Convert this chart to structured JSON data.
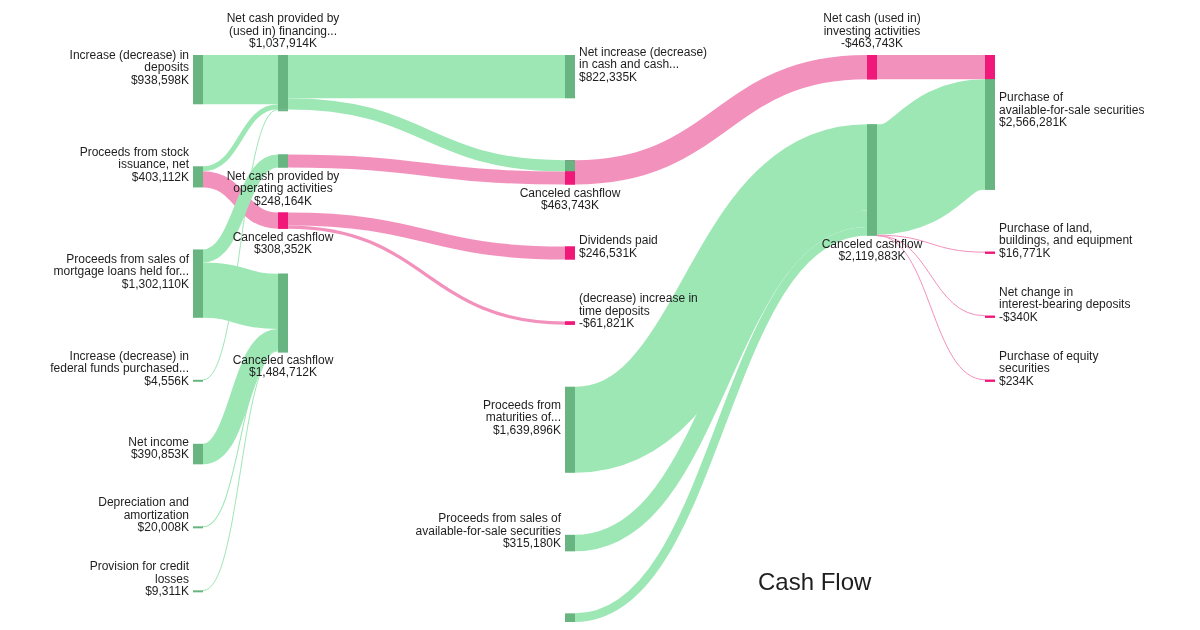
{
  "chart_data": {
    "type": "other",
    "title": "Cash Flow",
    "categories": [
      "Increase (decrease) in deposits",
      "Proceeds from stock issuance, net",
      "Proceeds from sales of mortgage loans held for...",
      "Increase (decrease) in federal funds purchased...",
      "Net income",
      "Depreciation and amortization",
      "Provision for credit losses",
      "Net cash provided by (used in) financing...",
      "Net cash provided by operating activities",
      "Canceled cashflow",
      "Canceled cashflow",
      "Net increase (decrease) in cash and cash...",
      "Canceled cashflow",
      "Dividends paid",
      "(decrease) increase in time deposits",
      "Proceeds from maturities of...",
      "Proceeds from sales of available-for-sale securities",
      null,
      "Net cash (used in) investing activities",
      "Canceled cashflow",
      "Purchase of available-for-sale securities",
      "Purchase of land, buildings, and equipment",
      "Net change in interest-bearing deposits",
      "Purchase of equity securities"
    ],
    "values": [
      938598,
      403112,
      1302110,
      4556,
      390853,
      20008,
      9311,
      1037914,
      248164,
      308352,
      1484712,
      822335,
      463743,
      246531,
      -61821,
      1639896,
      315180,
      null,
      -463743,
      2119883,
      2566281,
      16771,
      -340,
      234
    ],
    "value_labels": [
      "$938,598K",
      "$403,112K",
      "$1,302,110K",
      "$4,556K",
      "$390,853K",
      "$20,008K",
      "$9,311K",
      "$1,037,914K",
      "$248,164K",
      "$308,352K",
      "$1,484,712K",
      "$822,335K",
      "$463,743K",
      "$246,531K",
      "-$61,821K",
      "$1,639,896K",
      "$315,180K",
      null,
      "-$463,743K",
      "$2,119,883K",
      "$2,566,281K",
      "$16,771K",
      "-$340K",
      "$234K"
    ],
    "colors": [
      "#68b581",
      "#68b581",
      "#68b581",
      "#68b581",
      "#68b581",
      "#68b581",
      "#68b581",
      "#68b581",
      "#68b581",
      "#f0197a",
      "#68b581",
      "#68b581",
      "#f0197a",
      "#f0197a",
      "#f0197a",
      "#68b581",
      "#68b581",
      "#68b581",
      "#f0197a",
      "#68b581",
      "#68b581",
      "#f0197a",
      "#f0197a",
      "#f0197a"
    ],
    "cells": [
      [
        null,
        null,
        null,
        null,
        null,
        null,
        null,
        true,
        null,
        null,
        null,
        null,
        null,
        null,
        null,
        null,
        null,
        null,
        null,
        null,
        null,
        null,
        null,
        null
      ],
      [
        null,
        null,
        null,
        null,
        null,
        null,
        null,
        true,
        null,
        false,
        null,
        null,
        null,
        null,
        null,
        null,
        null,
        null,
        null,
        null,
        null,
        null,
        null,
        null
      ],
      [
        null,
        null,
        null,
        null,
        null,
        null,
        null,
        null,
        true,
        null,
        true,
        null,
        null,
        null,
        null,
        null,
        null,
        null,
        null,
        null,
        null,
        null,
        null,
        null
      ],
      [
        null,
        null,
        null,
        null,
        null,
        null,
        null,
        true,
        null,
        null,
        null,
        null,
        null,
        null,
        null,
        null,
        null,
        null,
        null,
        null,
        null,
        null,
        null,
        null
      ],
      [
        null,
        null,
        null,
        null,
        null,
        null,
        null,
        null,
        null,
        null,
        true,
        null,
        null,
        null,
        null,
        null,
        null,
        null,
        null,
        null,
        null,
        null,
        null,
        null
      ],
      [
        null,
        null,
        null,
        null,
        null,
        null,
        null,
        null,
        null,
        null,
        true,
        null,
        null,
        null,
        null,
        null,
        null,
        null,
        null,
        null,
        null,
        null,
        null,
        null
      ],
      [
        null,
        null,
        null,
        null,
        null,
        null,
        null,
        null,
        null,
        null,
        true,
        null,
        null,
        null,
        null,
        null,
        null,
        null,
        null,
        null,
        null,
        null,
        null,
        null
      ],
      [
        null,
        null,
        null,
        null,
        null,
        null,
        null,
        null,
        null,
        null,
        null,
        true,
        true,
        null,
        null,
        null,
        null,
        null,
        null,
        null,
        null,
        null,
        null,
        null
      ],
      [
        null,
        null,
        null,
        null,
        null,
        null,
        null,
        null,
        null,
        null,
        null,
        null,
        false,
        null,
        null,
        null,
        null,
        null,
        null,
        null,
        null,
        null,
        null,
        null
      ],
      [
        null,
        null,
        null,
        null,
        null,
        null,
        null,
        null,
        null,
        null,
        null,
        null,
        null,
        false,
        false,
        null,
        null,
        null,
        null,
        null,
        null,
        null,
        null,
        null
      ],
      [
        null,
        null,
        null,
        null,
        null,
        null,
        null,
        null,
        null,
        null,
        null,
        null,
        null,
        null,
        null,
        null,
        null,
        null,
        null,
        null,
        null,
        null,
        null,
        null
      ],
      [
        null,
        null,
        null,
        null,
        null,
        null,
        null,
        null,
        null,
        null,
        null,
        null,
        null,
        null,
        null,
        null,
        null,
        null,
        null,
        null,
        null,
        null,
        null,
        null
      ],
      [
        null,
        null,
        null,
        null,
        null,
        null,
        null,
        null,
        null,
        null,
        null,
        null,
        null,
        null,
        null,
        null,
        null,
        null,
        false,
        null,
        null,
        null,
        null,
        null
      ],
      [
        null,
        null,
        null,
        null,
        null,
        null,
        null,
        null,
        null,
        null,
        null,
        null,
        null,
        null,
        null,
        null,
        null,
        null,
        null,
        null,
        null,
        null,
        null,
        null
      ],
      [
        null,
        null,
        null,
        null,
        null,
        null,
        null,
        null,
        null,
        null,
        null,
        null,
        null,
        null,
        null,
        null,
        null,
        null,
        null,
        null,
        null,
        null,
        null,
        null
      ],
      [
        null,
        null,
        null,
        null,
        null,
        null,
        null,
        null,
        null,
        null,
        null,
        null,
        null,
        null,
        null,
        null,
        null,
        null,
        null,
        true,
        null,
        null,
        null,
        null
      ],
      [
        null,
        null,
        null,
        null,
        null,
        null,
        null,
        null,
        null,
        null,
        null,
        null,
        null,
        null,
        null,
        null,
        null,
        null,
        null,
        true,
        null,
        null,
        null,
        null
      ],
      [
        null,
        null,
        null,
        null,
        null,
        null,
        null,
        null,
        null,
        null,
        null,
        null,
        null,
        null,
        null,
        null,
        null,
        null,
        null,
        true,
        null,
        null,
        null,
        null
      ],
      [
        null,
        null,
        null,
        null,
        null,
        null,
        null,
        null,
        null,
        null,
        null,
        null,
        null,
        null,
        null,
        null,
        null,
        null,
        null,
        null,
        false,
        null,
        null,
        null
      ],
      [
        null,
        null,
        null,
        null,
        null,
        null,
        null,
        null,
        null,
        null,
        null,
        null,
        null,
        null,
        null,
        null,
        null,
        null,
        null,
        null,
        true,
        false,
        false,
        false
      ],
      [
        null,
        null,
        null,
        null,
        null,
        null,
        null,
        null,
        null,
        null,
        null,
        null,
        null,
        null,
        null,
        null,
        null,
        null,
        null,
        null,
        null,
        null,
        null,
        null
      ],
      [
        null,
        null,
        null,
        null,
        null,
        null,
        null,
        null,
        null,
        null,
        null,
        null,
        null,
        null,
        null,
        null,
        null,
        null,
        null,
        null,
        null,
        null,
        null,
        null
      ],
      [
        null,
        null,
        null,
        null,
        null,
        null,
        null,
        null,
        null,
        null,
        null,
        null,
        null,
        null,
        null,
        null,
        null,
        null,
        null,
        null,
        null,
        null,
        null,
        null
      ],
      [
        null,
        null,
        null,
        null,
        null,
        null,
        null,
        null,
        null,
        null,
        null,
        null,
        null,
        null,
        null,
        null,
        null,
        null,
        null,
        null,
        null,
        null,
        null,
        null
      ]
    ]
  }
}
